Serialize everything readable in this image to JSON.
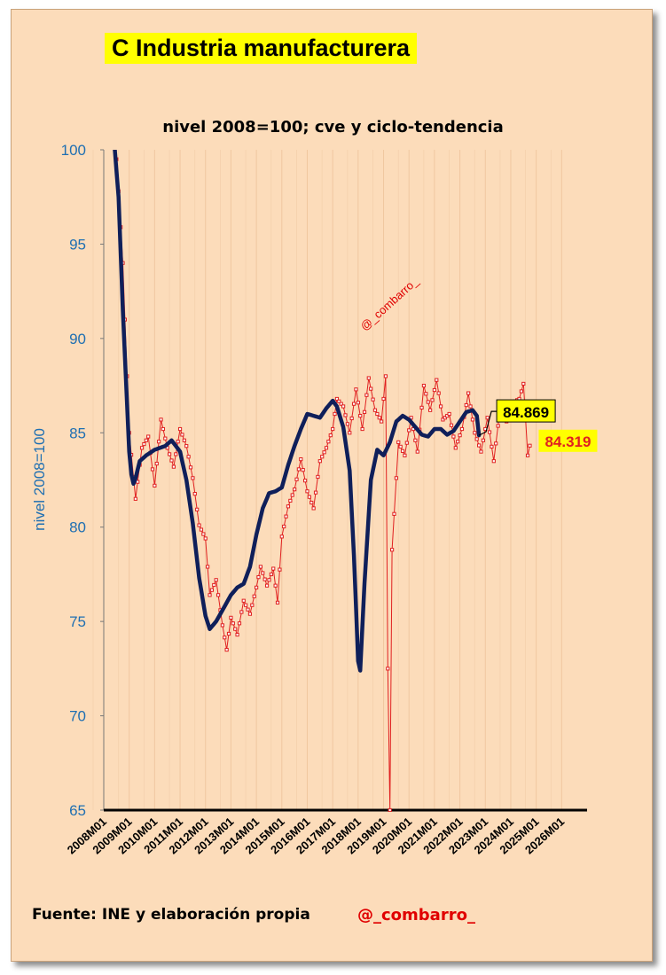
{
  "header": {
    "title": "C Industria manufacturera",
    "subtitle": "nivel 2008=100; cve y ciclo-tendencia"
  },
  "watermark": "@_combarro_",
  "footer": {
    "source": "Fuente: INE  y elaboración propia",
    "handle": "@_combarro_"
  },
  "colors": {
    "background": "#fcdcba",
    "trend_line": "#0f1f5a",
    "cve_line": "#e02020",
    "axis_labels": "#1f6fb2",
    "highlight": "#ffff00",
    "handle": "#e00000"
  },
  "chart_data": {
    "type": "line",
    "ylabel": "nivel 2008=100",
    "xlabel": "",
    "ylim": [
      65,
      100
    ],
    "yticks": [
      65,
      70,
      75,
      80,
      85,
      90,
      95,
      100
    ],
    "xticks": [
      "2008M01",
      "2009M01",
      "2010M01",
      "2011M01",
      "2012M01",
      "2013M01",
      "2014M01",
      "2015M01",
      "2016M01",
      "2017M01",
      "2018M01",
      "2019M01",
      "2020M01",
      "2021M01",
      "2022M01",
      "2023M01",
      "2024M01",
      "2025M01",
      "2026M01"
    ],
    "grid": "vertical",
    "series": [
      {
        "name": "cve",
        "anchors": [
          [
            "2008M06",
            100.3
          ],
          [
            "2008M07",
            99.5
          ],
          [
            "2008M08",
            97.8
          ],
          [
            "2008M10",
            94
          ],
          [
            "2009M01",
            85
          ],
          [
            "2009M04",
            81.5
          ],
          [
            "2009M07",
            84.2
          ],
          [
            "2009M10",
            84.8
          ],
          [
            "2010M01",
            82.2
          ],
          [
            "2010M04",
            85.7
          ],
          [
            "2010M07",
            84.2
          ],
          [
            "2010M10",
            83.2
          ],
          [
            "2011M01",
            85.2
          ],
          [
            "2011M04",
            84.3
          ],
          [
            "2011M07",
            82.6
          ],
          [
            "2011M10",
            80.1
          ],
          [
            "2012M01",
            79.4
          ],
          [
            "2012M03",
            76.4
          ],
          [
            "2012M06",
            77.2
          ],
          [
            "2012M09",
            74.8
          ],
          [
            "2012M11",
            73.5
          ],
          [
            "2013M01",
            75.2
          ],
          [
            "2013M04",
            74.3
          ],
          [
            "2013M07",
            76.1
          ],
          [
            "2013M10",
            75.4
          ],
          [
            "2014M01",
            76.8
          ],
          [
            "2014M03",
            77.9
          ],
          [
            "2014M06",
            76.9
          ],
          [
            "2014M09",
            77.8
          ],
          [
            "2014M11",
            76.0
          ],
          [
            "2015M01",
            79.5
          ],
          [
            "2015M04",
            81.1
          ],
          [
            "2015M07",
            82.0
          ],
          [
            "2015M10",
            83.6
          ],
          [
            "2016M01",
            81.9
          ],
          [
            "2016M04",
            81.0
          ],
          [
            "2016M07",
            83.5
          ],
          [
            "2016M10",
            84.2
          ],
          [
            "2017M01",
            85.2
          ],
          [
            "2017M03",
            86.8
          ],
          [
            "2017M06",
            86.4
          ],
          [
            "2017M09",
            85.0
          ],
          [
            "2017M12",
            87.3
          ],
          [
            "2018M03",
            85.2
          ],
          [
            "2018M06",
            87.9
          ],
          [
            "2018M09",
            86.2
          ],
          [
            "2018M12",
            85.6
          ],
          [
            "2019M02",
            88.0
          ],
          [
            "2019M03",
            72.5
          ],
          [
            "2019M04",
            65.0
          ],
          [
            "2019M05",
            78.8
          ],
          [
            "2019M08",
            84.5
          ],
          [
            "2019M11",
            83.8
          ],
          [
            "2020M02",
            85.8
          ],
          [
            "2020M05",
            84.0
          ],
          [
            "2020M08",
            87.5
          ],
          [
            "2020M11",
            86.2
          ],
          [
            "2021M02",
            87.8
          ],
          [
            "2021M05",
            85.7
          ],
          [
            "2021M08",
            86.0
          ],
          [
            "2021M11",
            84.2
          ],
          [
            "2022M02",
            85.2
          ],
          [
            "2022M05",
            87.1
          ],
          [
            "2022M08",
            85.0
          ],
          [
            "2022M11",
            84.0
          ],
          [
            "2023M02",
            85.8
          ],
          [
            "2023M05",
            83.5
          ],
          [
            "2023M08",
            86.3
          ],
          [
            "2023M11",
            85.6
          ],
          [
            "2024M02",
            86.6
          ],
          [
            "2024M05",
            86.8
          ],
          [
            "2024M07",
            87.6
          ],
          [
            "2024M09",
            83.8
          ],
          [
            "2024M10",
            84.319
          ]
        ],
        "last_value": 84.319
      },
      {
        "name": "ciclo-tendencia",
        "anchors": [
          [
            "2008M06",
            100.3
          ],
          [
            "2008M08",
            97.5
          ],
          [
            "2008M10",
            91.5
          ],
          [
            "2009M01",
            84.0
          ],
          [
            "2009M02",
            82.8
          ],
          [
            "2009M03",
            82.3
          ],
          [
            "2009M04",
            82.6
          ],
          [
            "2009M06",
            83.5
          ],
          [
            "2009M09",
            83.8
          ],
          [
            "2010M01",
            84.1
          ],
          [
            "2010M06",
            84.3
          ],
          [
            "2010M09",
            84.6
          ],
          [
            "2011M01",
            84.0
          ],
          [
            "2011M04",
            82.5
          ],
          [
            "2011M07",
            80.2
          ],
          [
            "2011M10",
            77.3
          ],
          [
            "2012M01",
            75.3
          ],
          [
            "2012M03",
            74.6
          ],
          [
            "2012M06",
            75.0
          ],
          [
            "2012M09",
            75.6
          ],
          [
            "2013M01",
            76.4
          ],
          [
            "2013M04",
            76.8
          ],
          [
            "2013M07",
            77.0
          ],
          [
            "2013M10",
            77.9
          ],
          [
            "2014M01",
            79.6
          ],
          [
            "2014M04",
            81.0
          ],
          [
            "2014M07",
            81.8
          ],
          [
            "2014M10",
            81.9
          ],
          [
            "2015M01",
            82.1
          ],
          [
            "2015M04",
            83.3
          ],
          [
            "2015M07",
            84.3
          ],
          [
            "2015M10",
            85.2
          ],
          [
            "2016M01",
            86.0
          ],
          [
            "2016M04",
            85.9
          ],
          [
            "2016M07",
            85.8
          ],
          [
            "2016M10",
            86.3
          ],
          [
            "2017M01",
            86.7
          ],
          [
            "2017M03",
            86.4
          ],
          [
            "2017M06",
            85.3
          ],
          [
            "2017M09",
            83.0
          ],
          [
            "2017M11",
            78.5
          ],
          [
            "2018M01",
            72.9
          ],
          [
            "2018M02",
            72.4
          ],
          [
            "2018M04",
            77.0
          ],
          [
            "2018M07",
            82.5
          ],
          [
            "2018M10",
            84.1
          ],
          [
            "2019M01",
            83.8
          ],
          [
            "2019M04",
            84.5
          ],
          [
            "2019M07",
            85.6
          ],
          [
            "2019M10",
            85.9
          ],
          [
            "2020M01",
            85.7
          ],
          [
            "2020M04",
            85.3
          ],
          [
            "2020M07",
            84.9
          ],
          [
            "2020M10",
            84.8
          ],
          [
            "2021M01",
            85.2
          ],
          [
            "2021M04",
            85.2
          ],
          [
            "2021M07",
            84.9
          ],
          [
            "2021M10",
            85.1
          ],
          [
            "2022M01",
            85.6
          ],
          [
            "2022M04",
            86.1
          ],
          [
            "2022M07",
            86.2
          ],
          [
            "2022M09",
            85.9
          ],
          [
            "2022M10",
            84.869
          ]
        ],
        "last_value": 84.869
      }
    ],
    "labels": {
      "trend_last": "84.869",
      "cve_last": "84.319"
    }
  }
}
